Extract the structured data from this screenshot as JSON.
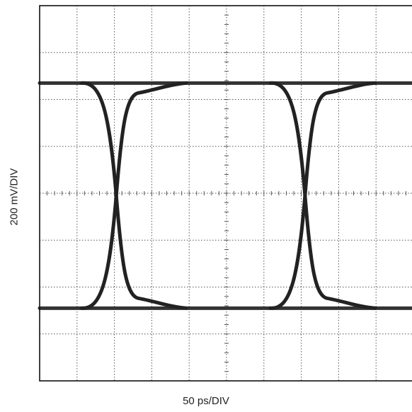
{
  "chart_data": {
    "type": "line",
    "title": "",
    "xlabel": "50 ps/DIV",
    "ylabel": "200 mV/DIV",
    "grid": true,
    "divisions": {
      "x": 10,
      "y": 8
    },
    "xlim": [
      0,
      10
    ],
    "ylim": [
      0,
      8
    ],
    "levels": {
      "high": 6.35,
      "low": 1.55
    },
    "crossings_div": [
      2.05,
      7.1
    ],
    "trace_color": "#222222",
    "grid_color": "#555555"
  }
}
